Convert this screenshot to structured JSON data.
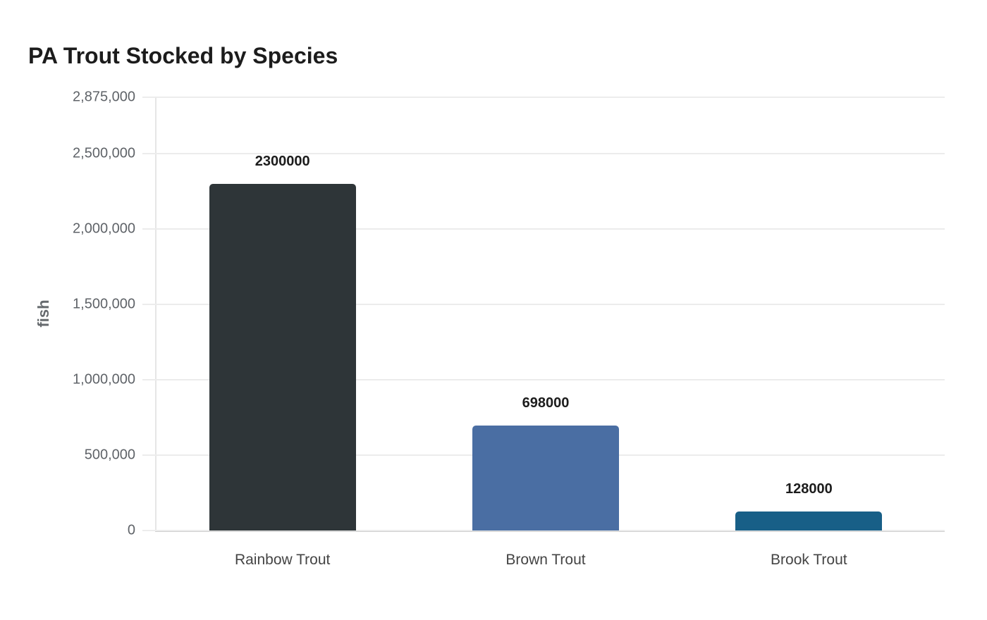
{
  "chart_data": {
    "type": "bar",
    "title": "PA Trout Stocked by Species",
    "xlabel": "",
    "ylabel": "fish",
    "categories": [
      "Rainbow Trout",
      "Brown Trout",
      "Brook Trout"
    ],
    "values": [
      2300000,
      698000,
      128000
    ],
    "value_labels": [
      "2300000",
      "698000",
      "128000"
    ],
    "colors": [
      "#2e3538",
      "#4a6ea3",
      "#185f87"
    ],
    "ylim": [
      0,
      2875000
    ],
    "yticks": [
      0,
      500000,
      1000000,
      1500000,
      2000000,
      2500000,
      2875000
    ],
    "ytick_labels": [
      "0",
      "500,000",
      "1,000,000",
      "1,500,000",
      "2,000,000",
      "2,500,000",
      "2,875,000"
    ],
    "grid": true,
    "legend": null
  }
}
